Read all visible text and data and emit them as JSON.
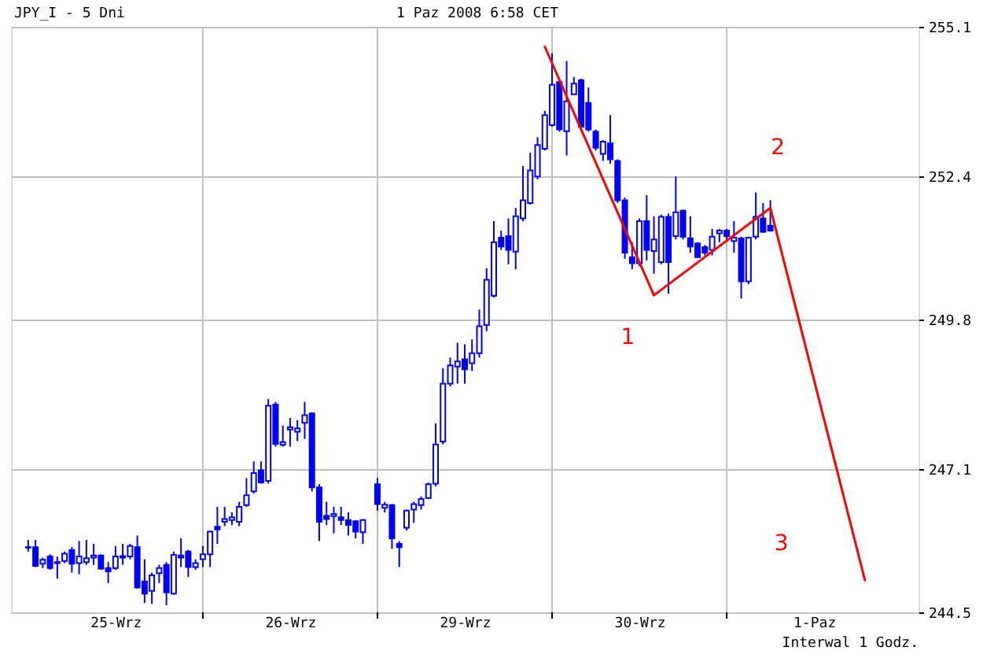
{
  "chart_data": {
    "type": "candlestick",
    "title": "JPY_I - 5 Dni",
    "subtitle": "1 Paz 2008 6:58 CET",
    "annotations": [
      "Interwal 1 Godz.",
      "1",
      "2",
      "3"
    ],
    "color": "#0000ff",
    "grid": true,
    "ylim": [
      244.5,
      255.1
    ],
    "yticks": [
      244.5,
      247.1,
      249.8,
      252.4,
      255.1
    ],
    "categories": [
      null,
      null,
      null,
      null,
      null,
      null,
      null,
      null,
      null,
      null,
      null,
      null,
      "25-Wrz",
      null,
      null,
      null,
      null,
      null,
      null,
      null,
      null,
      null,
      null,
      null,
      null,
      null,
      null,
      null,
      null,
      null,
      null,
      null,
      null,
      null,
      null,
      null,
      "26-Wrz",
      null,
      null,
      null,
      null,
      null,
      null,
      null,
      null,
      null,
      null,
      null,
      null,
      null,
      null,
      null,
      null,
      null,
      null,
      null,
      null,
      null,
      null,
      null,
      "29-Wrz",
      null,
      null,
      null,
      null,
      null,
      null,
      null,
      null,
      null,
      null,
      null,
      null,
      null,
      null,
      null,
      null,
      null,
      null,
      null,
      null,
      null,
      null,
      null,
      "30-Wrz",
      null,
      null,
      null,
      null,
      null,
      null,
      null,
      null,
      null,
      null,
      null,
      null,
      null,
      null,
      null,
      null,
      null,
      null,
      null,
      null,
      null,
      null,
      null,
      "1-Paz",
      null,
      null,
      null,
      null,
      null,
      null,
      null,
      null,
      null,
      null,
      null,
      null
    ],
    "ohlc": [
      [
        245.67,
        245.81,
        245.6,
        245.68
      ],
      [
        245.68,
        245.81,
        245.32,
        245.34
      ],
      [
        245.38,
        245.49,
        245.3,
        245.45
      ],
      [
        245.51,
        245.55,
        245.27,
        245.3
      ],
      [
        245.39,
        245.51,
        245.11,
        245.41
      ],
      [
        245.43,
        245.6,
        245.39,
        245.56
      ],
      [
        245.63,
        245.68,
        245.22,
        245.38
      ],
      [
        245.39,
        245.79,
        245.19,
        245.51
      ],
      [
        245.41,
        245.81,
        245.36,
        245.48
      ],
      [
        245.49,
        245.74,
        245.36,
        245.53
      ],
      [
        245.53,
        245.55,
        245.27,
        245.29
      ],
      [
        245.3,
        245.41,
        245.03,
        245.24
      ],
      [
        245.3,
        245.7,
        245.27,
        245.51
      ],
      [
        245.49,
        245.74,
        245.36,
        245.52
      ],
      [
        245.51,
        245.74,
        245.46,
        245.7
      ],
      [
        245.68,
        245.89,
        244.93,
        244.95
      ],
      [
        245.06,
        245.46,
        244.67,
        244.84
      ],
      [
        244.89,
        245.22,
        244.65,
        245.17
      ],
      [
        245.21,
        245.36,
        245.03,
        245.3
      ],
      [
        245.36,
        245.41,
        244.63,
        244.86
      ],
      [
        244.84,
        245.6,
        244.82,
        245.54
      ],
      [
        245.53,
        245.84,
        245.32,
        245.49
      ],
      [
        245.6,
        245.63,
        245.14,
        245.32
      ],
      [
        245.32,
        245.46,
        245.27,
        245.39
      ],
      [
        245.46,
        245.7,
        245.32,
        245.55
      ],
      [
        245.55,
        245.98,
        245.32,
        245.96
      ],
      [
        246.05,
        246.41,
        245.74,
        246.0
      ],
      [
        246.14,
        246.41,
        246.06,
        246.19
      ],
      [
        246.17,
        246.31,
        246.08,
        246.22
      ],
      [
        246.14,
        246.5,
        246.06,
        246.41
      ],
      [
        246.44,
        246.93,
        246.41,
        246.62
      ],
      [
        246.69,
        247.23,
        246.65,
        247.02
      ],
      [
        247.07,
        247.23,
        246.83,
        246.85
      ],
      [
        246.88,
        248.36,
        246.83,
        248.24
      ],
      [
        248.26,
        248.31,
        247.5,
        247.55
      ],
      [
        247.53,
        247.88,
        247.5,
        247.58
      ],
      [
        247.81,
        248.02,
        247.5,
        247.85
      ],
      [
        247.77,
        247.98,
        247.6,
        247.83
      ],
      [
        247.93,
        248.31,
        247.64,
        248.07
      ],
      [
        248.1,
        248.12,
        246.69,
        246.76
      ],
      [
        246.76,
        246.82,
        245.79,
        246.14
      ],
      [
        246.25,
        246.5,
        246.08,
        246.19
      ],
      [
        246.24,
        246.41,
        245.93,
        246.28
      ],
      [
        246.22,
        246.41,
        246.08,
        246.17
      ],
      [
        246.17,
        246.31,
        245.89,
        246.08
      ],
      [
        246.15,
        246.17,
        245.84,
        245.96
      ],
      [
        245.95,
        246.19,
        245.74,
        246.17
      ],
      null,
      [
        246.82,
        246.93,
        246.34,
        246.46
      ],
      [
        246.39,
        246.5,
        246.31,
        246.45
      ],
      [
        246.44,
        246.46,
        245.65,
        245.84
      ],
      [
        245.74,
        245.79,
        245.32,
        245.68
      ],
      [
        246.03,
        246.36,
        245.98,
        246.34
      ],
      [
        246.36,
        246.5,
        246.12,
        246.46
      ],
      [
        246.44,
        246.6,
        246.36,
        246.55
      ],
      [
        246.57,
        246.85,
        246.55,
        246.82
      ],
      [
        246.83,
        247.92,
        246.78,
        247.54
      ],
      [
        247.59,
        248.92,
        247.54,
        248.64
      ],
      [
        248.64,
        249.11,
        248.59,
        248.97
      ],
      [
        248.95,
        249.38,
        248.64,
        249.04
      ],
      [
        249.08,
        249.35,
        248.64,
        248.9
      ],
      [
        249.01,
        249.44,
        248.87,
        249.19
      ],
      [
        249.19,
        249.98,
        249.11,
        249.68
      ],
      [
        249.7,
        250.73,
        249.59,
        250.52
      ],
      [
        250.23,
        251.58,
        250.2,
        251.2
      ],
      [
        251.28,
        251.41,
        251.06,
        251.12
      ],
      [
        251.31,
        251.63,
        250.8,
        251.06
      ],
      [
        251.03,
        251.82,
        250.71,
        251.67
      ],
      [
        251.63,
        252.58,
        251.58,
        251.96
      ],
      [
        251.91,
        252.82,
        251.88,
        252.5
      ],
      [
        252.39,
        253.1,
        252.34,
        252.96
      ],
      [
        252.89,
        253.58,
        252.86,
        253.5
      ],
      [
        253.32,
        254.62,
        253.29,
        254.05
      ],
      [
        254.1,
        254.15,
        253.2,
        253.24
      ],
      [
        253.21,
        254.48,
        252.77,
        253.75
      ],
      [
        253.88,
        254.19,
        253.86,
        254.07
      ],
      [
        254.13,
        254.16,
        253.24,
        253.29
      ],
      [
        253.72,
        254.0,
        253.2,
        253.24
      ],
      [
        253.2,
        253.24,
        252.86,
        252.91
      ],
      [
        252.8,
        253.05,
        252.67,
        253.02
      ],
      [
        252.99,
        253.5,
        252.62,
        252.7
      ],
      [
        252.67,
        252.7,
        251.91,
        251.96
      ],
      [
        251.96,
        252.01,
        250.9,
        251.01
      ],
      [
        250.93,
        251.2,
        250.71,
        250.82
      ],
      [
        250.82,
        251.63,
        250.77,
        251.58
      ],
      [
        251.58,
        252.05,
        250.87,
        251.06
      ],
      [
        251.04,
        251.67,
        250.63,
        251.25
      ],
      [
        250.84,
        251.7,
        250.8,
        251.66
      ],
      [
        251.66,
        251.72,
        250.27,
        250.84
      ],
      [
        251.31,
        252.39,
        251.25,
        251.74
      ],
      [
        251.77,
        251.79,
        251.25,
        251.3
      ],
      [
        251.27,
        251.67,
        251.01,
        251.12
      ],
      [
        251.18,
        251.2,
        250.92,
        250.93
      ],
      [
        251.11,
        251.15,
        250.96,
        251.01
      ],
      [
        251.06,
        251.44,
        250.96,
        251.3
      ],
      [
        251.36,
        251.44,
        251.2,
        251.41
      ],
      [
        251.41,
        251.44,
        251.2,
        251.31
      ],
      [
        251.22,
        251.58,
        251.01,
        251.28
      ],
      [
        251.27,
        251.3,
        250.18,
        250.49
      ],
      [
        250.49,
        251.3,
        250.44,
        251.28
      ],
      [
        251.3,
        252.1,
        251.25,
        251.66
      ],
      [
        251.63,
        251.91,
        251.37,
        251.39
      ],
      [
        251.5,
        251.96,
        251.39,
        251.41
      ],
      null,
      null,
      null,
      null,
      null,
      null,
      null,
      null,
      null,
      null,
      null,
      null,
      null,
      null,
      null,
      null,
      null,
      null
    ],
    "series": [
      {
        "type": "line",
        "color": "#ff0000",
        "values": [
          null,
          null,
          null,
          null,
          null,
          null,
          null,
          null,
          null,
          null,
          null,
          null,
          null,
          null,
          null,
          null,
          null,
          null,
          null,
          null,
          null,
          null,
          null,
          null,
          null,
          null,
          null,
          null,
          null,
          null,
          null,
          null,
          null,
          null,
          null,
          null,
          null,
          null,
          null,
          null,
          null,
          null,
          null,
          null,
          null,
          null,
          null,
          null,
          null,
          null,
          null,
          null,
          null,
          null,
          null,
          null,
          null,
          null,
          null,
          null,
          null,
          null,
          null,
          null,
          null,
          null,
          null,
          null,
          null,
          null,
          null,
          254.74,
          null,
          null,
          null,
          null,
          null,
          null,
          null,
          null,
          null,
          null,
          null,
          null,
          null,
          null,
          250.24,
          null,
          null,
          null,
          null,
          null,
          null,
          null,
          null,
          null,
          null,
          null,
          null,
          null,
          null,
          null,
          251.82,
          null,
          null,
          null,
          null,
          null,
          null,
          null,
          null,
          null,
          null,
          null,
          null,
          245.08,
          null,
          null,
          null,
          null,
          null
        ]
      }
    ]
  }
}
